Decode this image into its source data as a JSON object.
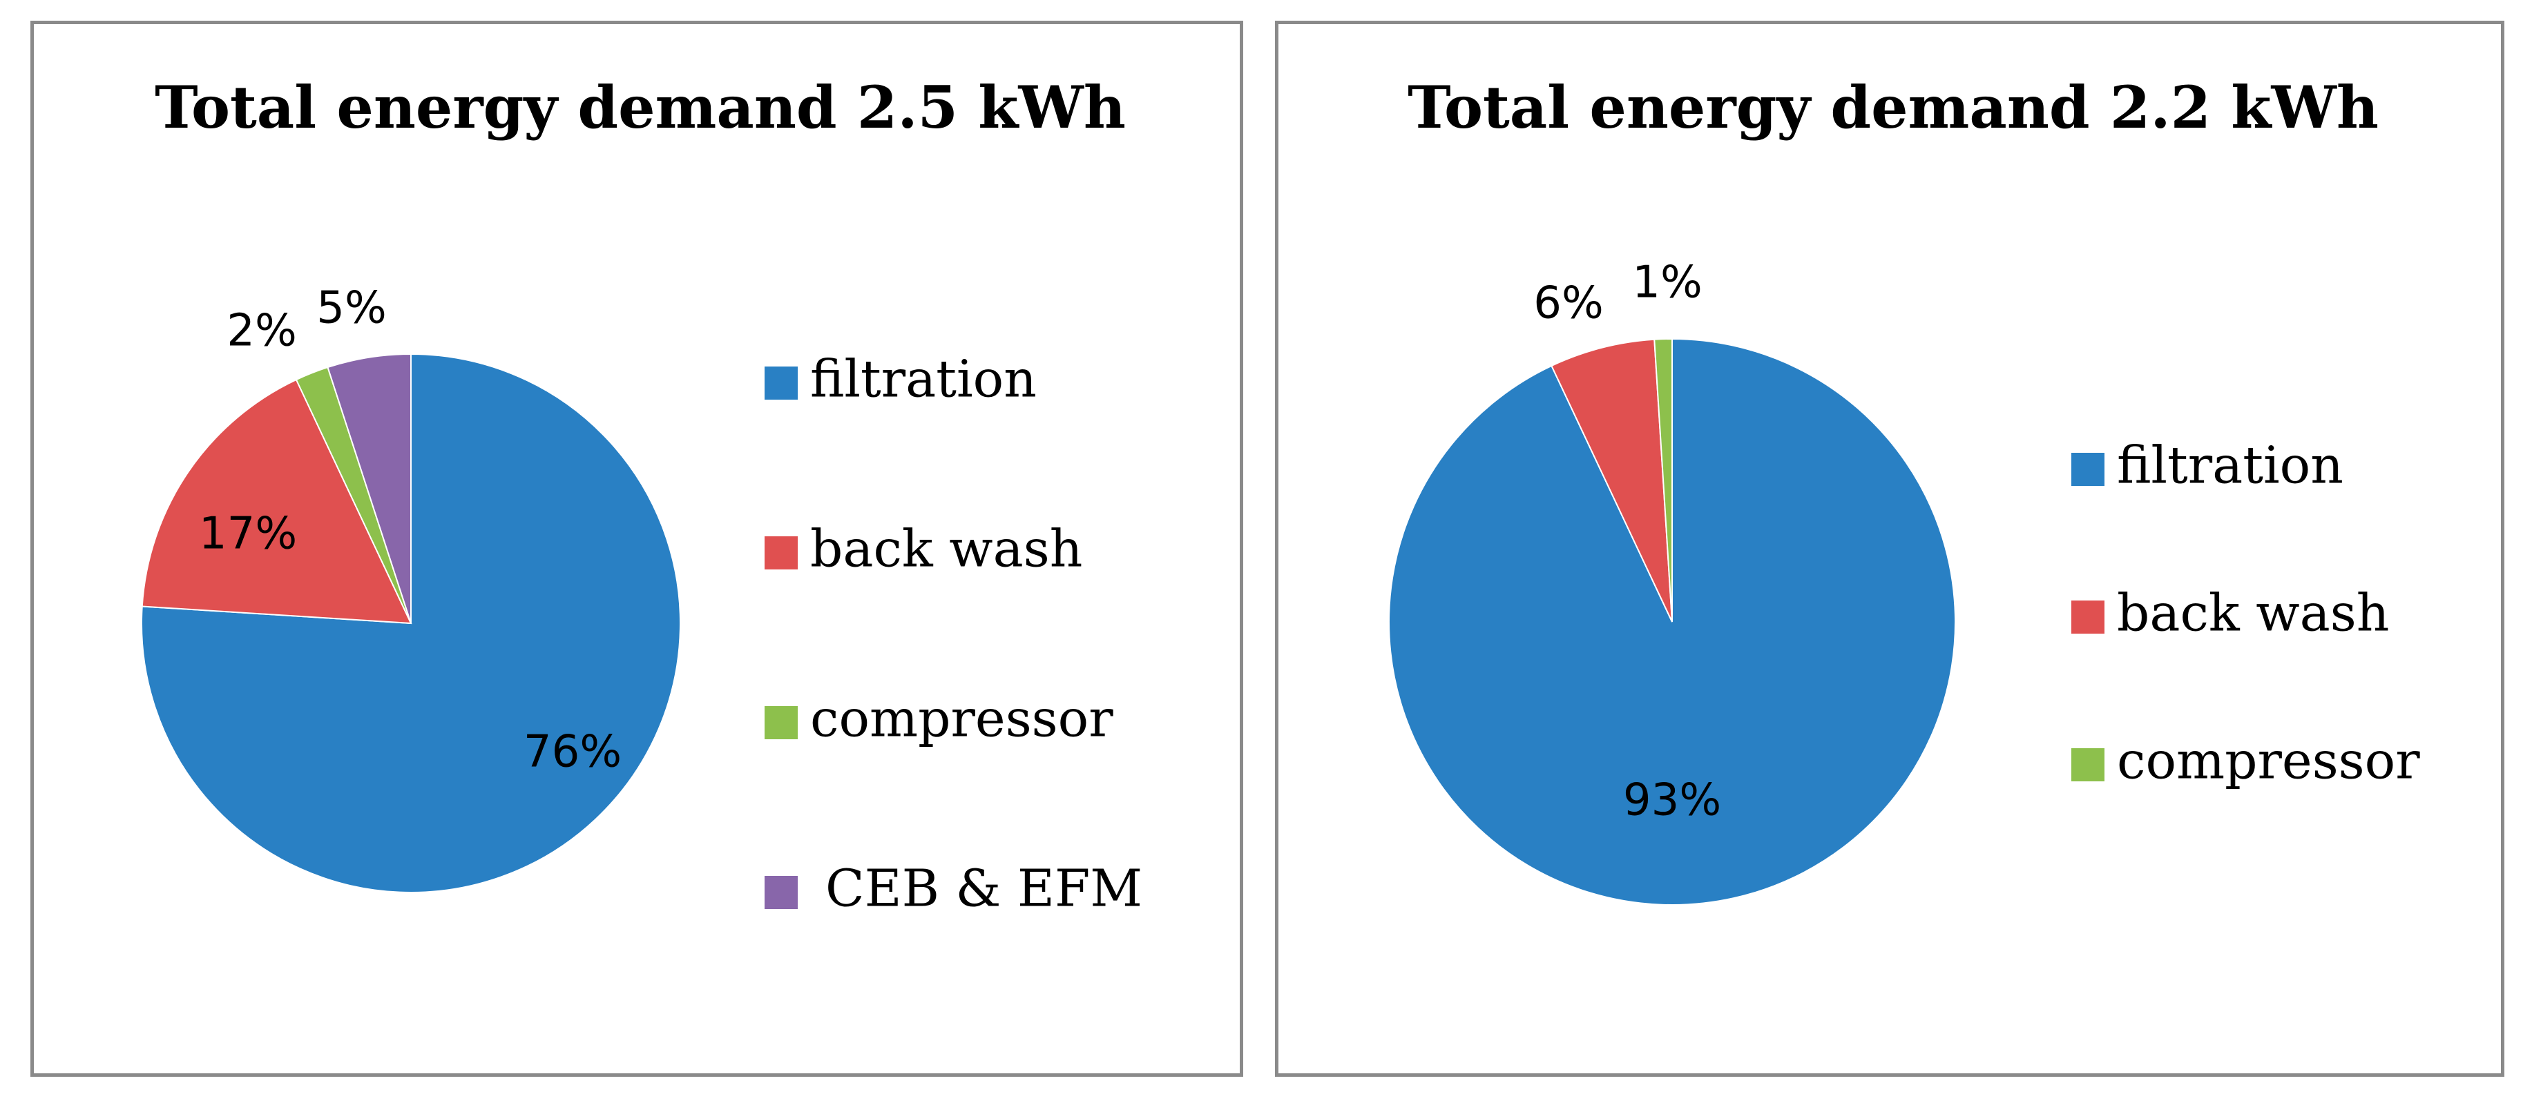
{
  "chart_data": [
    {
      "type": "pie",
      "title": "Total energy demand 2.5 kWh",
      "categories": [
        "filtration",
        "back wash",
        "compressor",
        "CEB & EFM"
      ],
      "values": [
        76,
        17,
        2,
        5
      ],
      "labels": [
        "76%",
        "17%",
        "2%",
        "5%"
      ],
      "colors": [
        "#2980c4",
        "#e05050",
        "#8dc04c",
        "#8866aa"
      ],
      "legend_position": "right",
      "start_angle": "12 o'clock",
      "direction": "clockwise"
    },
    {
      "type": "pie",
      "title": "Total energy demand 2.2 kWh",
      "categories": [
        "filtration",
        "back wash",
        "compressor"
      ],
      "values": [
        93,
        6,
        1
      ],
      "labels": [
        "93%",
        "6%",
        "1%"
      ],
      "colors": [
        "#2980c4",
        "#e05050",
        "#8dc04c"
      ],
      "legend_position": "right",
      "start_angle": "12 o'clock",
      "direction": "clockwise"
    }
  ]
}
